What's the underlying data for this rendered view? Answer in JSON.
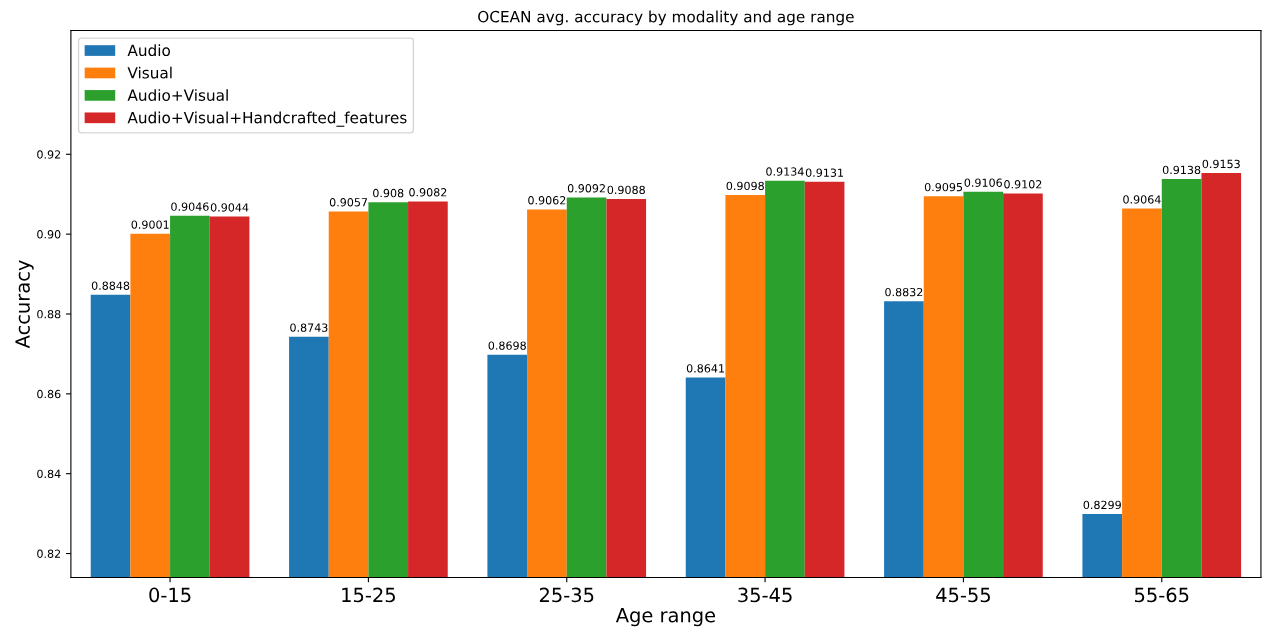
{
  "chart_data": {
    "type": "bar",
    "title": "OCEAN avg. accuracy by modality and age range",
    "xlabel": "Age range",
    "ylabel": "Accuracy",
    "categories": [
      "0-15",
      "15-25",
      "25-35",
      "35-45",
      "45-55",
      "55-65"
    ],
    "series": [
      {
        "name": "Audio",
        "color": "#1f77b4",
        "values": [
          0.8848,
          0.8743,
          0.8698,
          0.8641,
          0.8832,
          0.8299
        ]
      },
      {
        "name": "Visual",
        "color": "#ff7f0e",
        "values": [
          0.9001,
          0.9057,
          0.9062,
          0.9098,
          0.9095,
          0.9064
        ]
      },
      {
        "name": "Audio+Visual",
        "color": "#2ca02c",
        "values": [
          0.9046,
          0.908,
          0.9092,
          0.9134,
          0.9106,
          0.9138
        ]
      },
      {
        "name": "Audio+Visual+Handcrafted_features",
        "color": "#d62728",
        "values": [
          0.9044,
          0.9082,
          0.9088,
          0.9131,
          0.9102,
          0.9153
        ]
      }
    ],
    "ylim": [
      0.814,
      0.951
    ],
    "yticks": [
      {
        "value": 0.82,
        "label": "0.82"
      },
      {
        "value": 0.84,
        "label": "0.84"
      },
      {
        "value": 0.86,
        "label": "0.86"
      },
      {
        "value": 0.88,
        "label": "0.88"
      },
      {
        "value": 0.9,
        "label": "0.90"
      },
      {
        "value": 0.92,
        "label": "0.92"
      }
    ],
    "data_labels": true,
    "legend": "top left",
    "grid": false
  }
}
